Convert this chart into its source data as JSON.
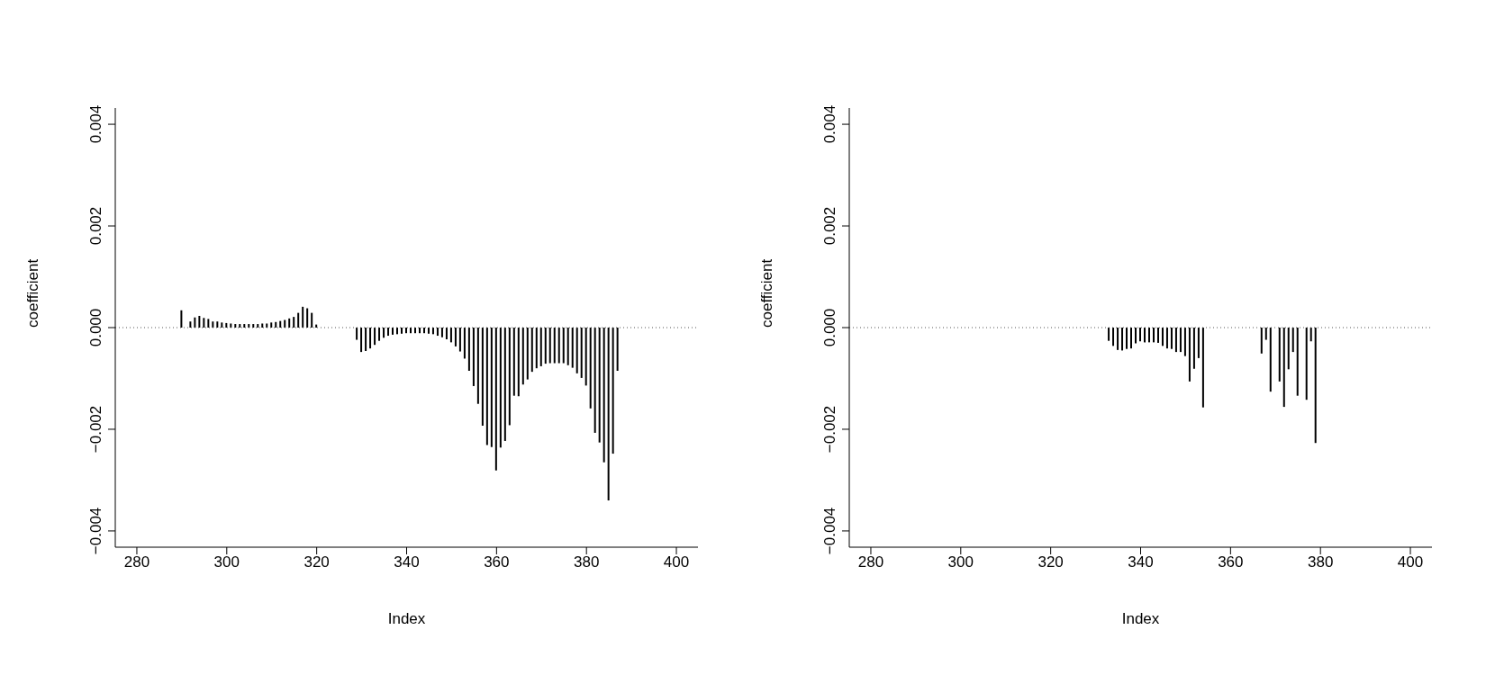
{
  "chart_data": [
    {
      "type": "bar",
      "xlabel": "Index",
      "ylabel": "coefficient",
      "color": "#000000",
      "x": [
        290,
        292,
        293,
        294,
        295,
        296,
        297,
        298,
        299,
        300,
        301,
        302,
        303,
        304,
        305,
        306,
        307,
        308,
        309,
        310,
        311,
        312,
        313,
        314,
        315,
        316,
        317,
        318,
        319,
        320,
        329,
        330,
        331,
        332,
        333,
        334,
        335,
        336,
        337,
        338,
        339,
        340,
        341,
        342,
        343,
        344,
        345,
        346,
        347,
        348,
        349,
        350,
        351,
        352,
        353,
        354,
        355,
        356,
        357,
        358,
        359,
        360,
        361,
        362,
        363,
        364,
        365,
        366,
        367,
        368,
        369,
        370,
        371,
        372,
        373,
        374,
        375,
        376,
        377,
        378,
        379,
        380,
        381,
        382,
        383,
        384,
        385,
        386,
        387
      ],
      "values": [
        0.00034,
        0.00012,
        0.0002,
        0.00023,
        0.00019,
        0.00017,
        0.00012,
        0.00012,
        0.0001,
        9e-05,
        8e-05,
        7e-05,
        7e-05,
        7e-05,
        7e-05,
        7e-05,
        7e-05,
        8e-05,
        8e-05,
        0.0001,
        0.00011,
        0.00013,
        0.00015,
        0.00018,
        0.00021,
        0.00029,
        0.00041,
        0.00038,
        0.00029,
        6e-05,
        -0.00024,
        -0.00048,
        -0.00046,
        -0.00041,
        -0.00034,
        -0.00026,
        -0.0002,
        -0.00016,
        -0.00014,
        -0.00013,
        -0.00012,
        -0.00011,
        -0.00011,
        -0.00011,
        -0.00011,
        -0.00011,
        -0.00012,
        -0.00013,
        -0.00016,
        -0.00019,
        -0.00023,
        -0.00029,
        -0.00037,
        -0.00047,
        -0.00061,
        -0.00085,
        -0.00115,
        -0.0015,
        -0.00193,
        -0.00231,
        -0.00235,
        -0.00281,
        -0.00236,
        -0.00223,
        -0.00192,
        -0.00134,
        -0.00135,
        -0.00112,
        -0.00102,
        -0.00087,
        -0.0008,
        -0.00076,
        -0.00071,
        -0.0007,
        -0.0007,
        -0.0007,
        -0.0007,
        -0.00074,
        -0.00079,
        -0.0009,
        -0.00099,
        -0.00114,
        -0.00159,
        -0.00207,
        -0.00226,
        -0.00265,
        -0.0034,
        -0.00248,
        -0.00085
      ],
      "xlim": [
        275.2,
        404.8
      ],
      "xticks": [
        280,
        300,
        320,
        340,
        360,
        380,
        400
      ],
      "ylim": [
        -0.00432,
        0.00432
      ],
      "yticks": [
        {
          "value": -0.004,
          "label": "−0.004"
        },
        {
          "value": -0.002,
          "label": "−0.002"
        },
        {
          "value": 0,
          "label": "0.000"
        },
        {
          "value": 0.002,
          "label": "0.002"
        },
        {
          "value": 0.004,
          "label": "0.004"
        }
      ],
      "ref_lines": [
        {
          "axis": "y",
          "value": 0,
          "color": "#555555",
          "line_style": "dotted"
        }
      ]
    },
    {
      "type": "bar",
      "xlabel": "Index",
      "ylabel": "coefficient",
      "color": "#000000",
      "x": [
        333,
        334,
        335,
        336,
        337,
        338,
        339,
        340,
        341,
        342,
        343,
        344,
        345,
        346,
        347,
        348,
        349,
        350,
        351,
        352,
        353,
        354,
        367,
        368,
        369,
        371,
        372,
        373,
        374,
        375,
        377,
        378,
        379
      ],
      "values": [
        -0.00026,
        -0.00036,
        -0.00044,
        -0.00045,
        -0.00042,
        -0.00041,
        -0.00031,
        -0.00027,
        -0.00029,
        -0.00029,
        -0.00029,
        -0.0003,
        -0.00036,
        -0.00041,
        -0.00042,
        -0.00048,
        -0.00048,
        -0.00056,
        -0.00106,
        -0.00081,
        -0.0006,
        -0.00157,
        -0.00051,
        -0.00024,
        -0.00126,
        -0.00106,
        -0.00156,
        -0.00082,
        -0.00048,
        -0.00134,
        -0.00142,
        -0.00027,
        -0.00227
      ],
      "xlim": [
        275.2,
        404.8
      ],
      "xticks": [
        280,
        300,
        320,
        340,
        360,
        380,
        400
      ],
      "ylim": [
        -0.00432,
        0.00432
      ],
      "yticks": [
        {
          "value": -0.004,
          "label": "−0.004"
        },
        {
          "value": -0.002,
          "label": "−0.002"
        },
        {
          "value": 0,
          "label": "0.000"
        },
        {
          "value": 0.002,
          "label": "0.002"
        },
        {
          "value": 0.004,
          "label": "0.004"
        }
      ],
      "ref_lines": [
        {
          "axis": "y",
          "value": 0,
          "color": "#555555",
          "line_style": "dotted"
        }
      ]
    }
  ]
}
